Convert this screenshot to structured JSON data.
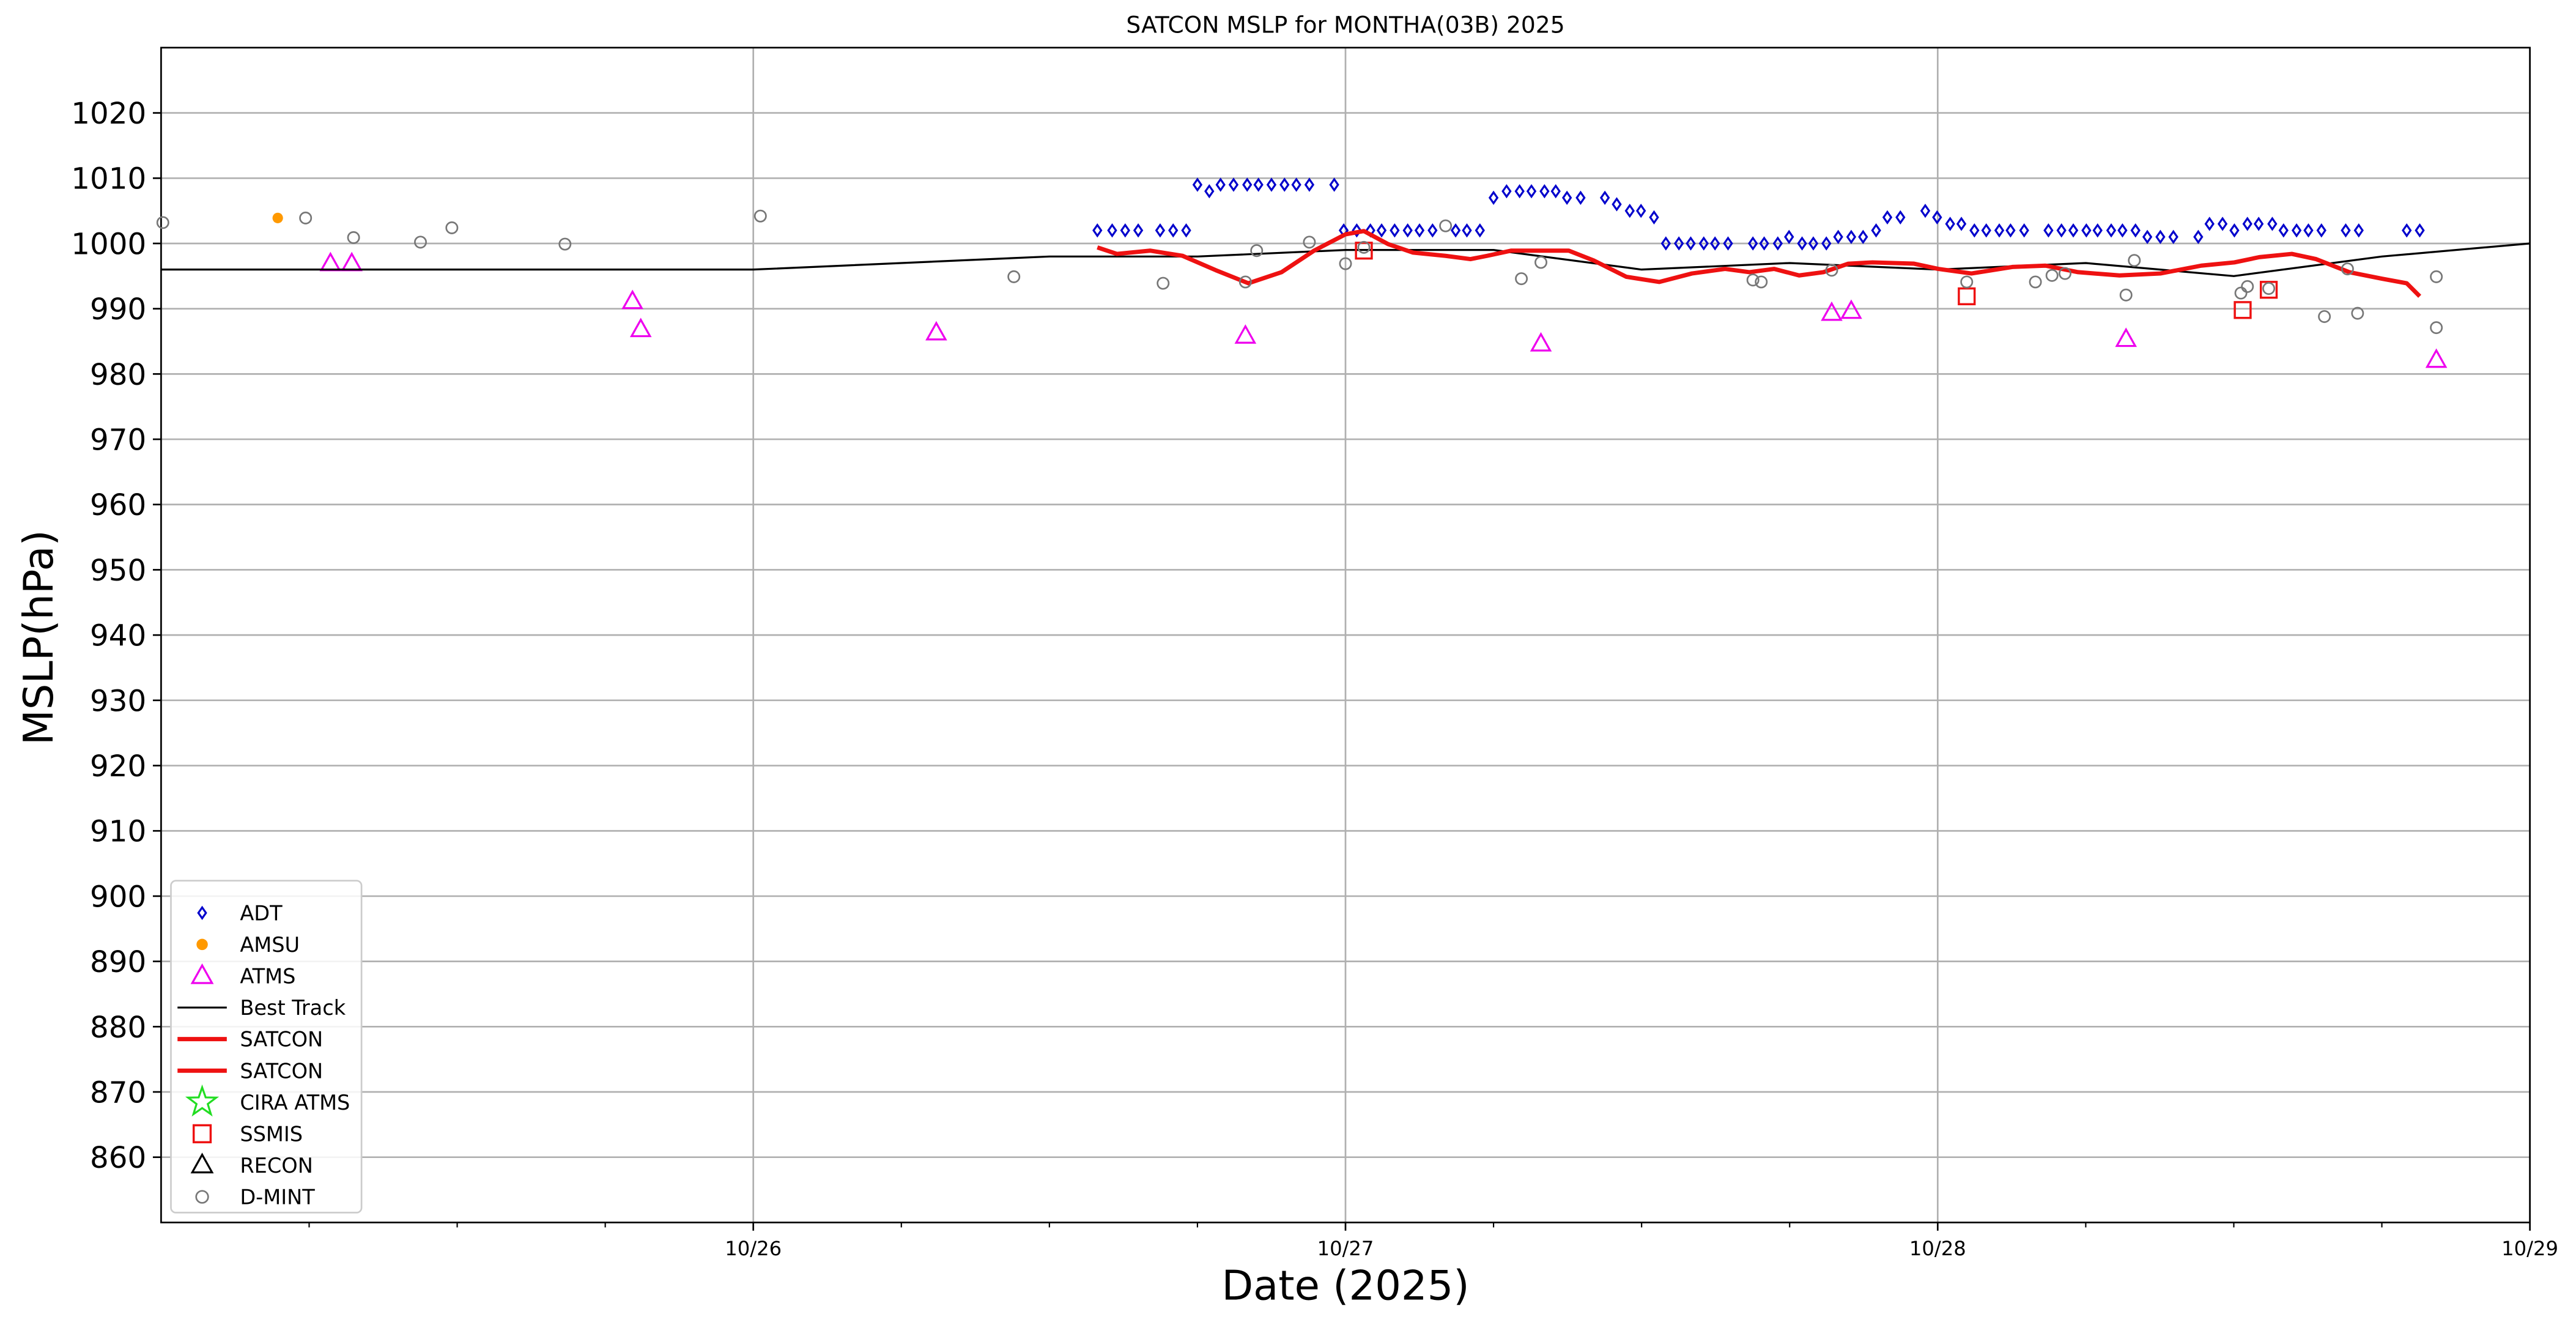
{
  "chart_data": {
    "type": "scatter",
    "title": "SATCON MSLP for MONTHA(03B) 2025",
    "xlabel": "Date (2025)",
    "ylabel": "MSLP(hPa)",
    "xlim": [
      0,
      4
    ],
    "ylim": [
      850,
      1030
    ],
    "xticks": [
      {
        "value": 1,
        "label": "10/26"
      },
      {
        "value": 2,
        "label": "10/27"
      },
      {
        "value": 3,
        "label": "10/28"
      },
      {
        "value": 4,
        "label": "10/29"
      }
    ],
    "xminorticks": [
      0.25,
      0.5,
      0.75,
      1.25,
      1.5,
      1.75,
      2.25,
      2.5,
      2.75,
      3.25,
      3.5,
      3.75
    ],
    "yticks": [
      860,
      870,
      880,
      890,
      900,
      910,
      920,
      930,
      940,
      950,
      960,
      970,
      980,
      990,
      1000,
      1010,
      1020
    ],
    "grid": true,
    "legend": "lower left",
    "series": [
      {
        "name": "ADT",
        "marker": "diamond",
        "color": "#0000cc",
        "x": [
          1.581,
          1.606,
          1.628,
          1.65,
          1.687,
          1.709,
          1.731,
          1.75,
          1.77,
          1.789,
          1.811,
          1.834,
          1.853,
          1.875,
          1.897,
          1.917,
          1.939,
          1.981,
          1.997,
          2.019,
          2.042,
          2.061,
          2.083,
          2.105,
          2.125,
          2.147,
          2.186,
          2.205,
          2.227,
          2.25,
          2.272,
          2.294,
          2.314,
          2.336,
          2.355,
          2.374,
          2.397,
          2.438,
          2.458,
          2.48,
          2.499,
          2.521,
          2.541,
          2.563,
          2.583,
          2.605,
          2.624,
          2.646,
          2.688,
          2.707,
          2.73,
          2.749,
          2.771,
          2.79,
          2.812,
          2.832,
          2.854,
          2.874,
          2.896,
          2.915,
          2.937,
          2.979,
          2.999,
          3.021,
          3.04,
          3.062,
          3.082,
          3.104,
          3.123,
          3.146,
          3.187,
          3.209,
          3.229,
          3.251,
          3.27,
          3.293,
          3.312,
          3.334,
          3.354,
          3.376,
          3.398,
          3.44,
          3.459,
          3.481,
          3.501,
          3.523,
          3.542,
          3.565,
          3.584,
          3.606,
          3.626,
          3.648,
          3.689,
          3.711,
          3.792,
          3.814
        ],
        "values": [
          1002,
          1002,
          1002,
          1002,
          1002,
          1002,
          1002,
          1009,
          1008,
          1009,
          1009,
          1009,
          1009,
          1009,
          1009,
          1009,
          1009,
          1009,
          1002,
          1002,
          1002,
          1002,
          1002,
          1002,
          1002,
          1002,
          1002,
          1002,
          1002,
          1007,
          1008,
          1008,
          1008,
          1008,
          1008,
          1007,
          1007,
          1007,
          1006,
          1005,
          1005,
          1004,
          1000,
          1000,
          1000,
          1000,
          1000,
          1000,
          1000,
          1000,
          1000,
          1001,
          1000,
          1000,
          1000,
          1001,
          1001,
          1001,
          1002,
          1004,
          1004,
          1005,
          1004,
          1003,
          1003,
          1002,
          1002,
          1002,
          1002,
          1002,
          1002,
          1002,
          1002,
          1002,
          1002,
          1002,
          1002,
          1002,
          1001,
          1001,
          1001,
          1001,
          1003,
          1003,
          1002,
          1003,
          1003,
          1003,
          1002,
          1002,
          1002,
          1002,
          1002,
          1002,
          1002,
          1002
        ]
      },
      {
        "name": "AMSU",
        "marker": "dot",
        "color": "#ff9900",
        "x": [
          0.197
        ],
        "values": [
          1003.9
        ]
      },
      {
        "name": "ATMS",
        "marker": "triangle",
        "color": "#ee00ee",
        "x": [
          0.286,
          0.322,
          0.796,
          0.81,
          1.309,
          1.831,
          2.33,
          2.821,
          2.854,
          3.318,
          3.842
        ],
        "values": [
          996.9,
          996.9,
          991.1,
          986.8,
          986.3,
          985.8,
          984.6,
          989.3,
          989.6,
          985.3,
          982.1
        ]
      },
      {
        "name": "Best Track",
        "marker": "line",
        "color": "#000000",
        "x": [
          0,
          1,
          1.5,
          1.75,
          2,
          2.25,
          2.5,
          2.75,
          3,
          3.25,
          3.5,
          3.75,
          4
        ],
        "values": [
          996,
          996,
          998,
          998,
          999,
          999,
          996,
          997,
          996,
          997,
          995,
          998,
          1000
        ]
      },
      {
        "name": "SATCON",
        "marker": "thickline",
        "color": "#ee1111",
        "x": [
          1.581,
          1.614,
          1.67,
          1.725,
          1.781,
          1.836,
          1.892,
          1.947,
          2.0,
          2.031,
          2.072,
          2.114,
          2.169,
          2.211,
          2.239,
          2.28,
          2.336,
          2.377,
          2.419,
          2.474,
          2.53,
          2.585,
          2.641,
          2.682,
          2.724,
          2.766,
          2.807,
          2.849,
          2.89,
          2.96,
          3.001,
          3.057,
          3.126,
          3.182,
          3.237,
          3.307,
          3.376,
          3.445,
          3.501,
          3.543,
          3.598,
          3.639,
          3.695,
          3.75,
          3.792,
          3.814
        ],
        "values": [
          999.4,
          998.4,
          998.9,
          998.1,
          995.9,
          993.9,
          995.6,
          998.9,
          1001.4,
          1001.9,
          999.9,
          998.6,
          998.1,
          997.6,
          998.1,
          998.9,
          998.9,
          998.9,
          997.4,
          994.9,
          994.1,
          995.4,
          996.1,
          995.6,
          996.1,
          995.1,
          995.6,
          996.9,
          997.1,
          996.9,
          996.1,
          995.4,
          996.4,
          996.6,
          995.6,
          995.1,
          995.4,
          996.6,
          997.1,
          997.9,
          998.4,
          997.6,
          995.6,
          994.6,
          993.9,
          991.9
        ]
      },
      {
        "name": "SATCON",
        "marker": "thickline",
        "color": "#ee1111",
        "x": [],
        "values": []
      },
      {
        "name": "CIRA ATMS",
        "marker": "star",
        "color": "#22dd22",
        "x": [],
        "values": []
      },
      {
        "name": "SSMIS",
        "marker": "square",
        "color": "#ee1111",
        "x": [
          2.031,
          3.049,
          3.515,
          3.559
        ],
        "values": [
          998.9,
          991.9,
          989.8,
          992.9
        ]
      },
      {
        "name": "RECON",
        "marker": "triangle",
        "color": "#000000",
        "x": [],
        "values": []
      },
      {
        "name": "D-MINT",
        "marker": "circle",
        "color": "#777777",
        "x": [
          0.003,
          0.244,
          0.325,
          0.438,
          0.491,
          0.682,
          1.012,
          1.44,
          1.692,
          1.831,
          1.85,
          1.939,
          2.0,
          2.031,
          2.169,
          2.297,
          2.33,
          2.688,
          2.702,
          2.821,
          3.049,
          3.165,
          3.193,
          3.215,
          3.318,
          3.332,
          3.512,
          3.523,
          3.559,
          3.653,
          3.692,
          3.709,
          3.842,
          3.842
        ],
        "values": [
          1003.2,
          1003.9,
          1000.9,
          1000.2,
          1002.4,
          999.9,
          1004.2,
          994.9,
          993.9,
          994.1,
          998.9,
          1000.2,
          996.9,
          999.4,
          1002.7,
          994.6,
          997.1,
          994.4,
          994.1,
          995.9,
          994.1,
          994.1,
          995.1,
          995.4,
          992.1,
          997.4,
          992.4,
          993.4,
          993.1,
          988.8,
          996.1,
          989.3,
          994.9,
          987.1
        ]
      }
    ]
  }
}
